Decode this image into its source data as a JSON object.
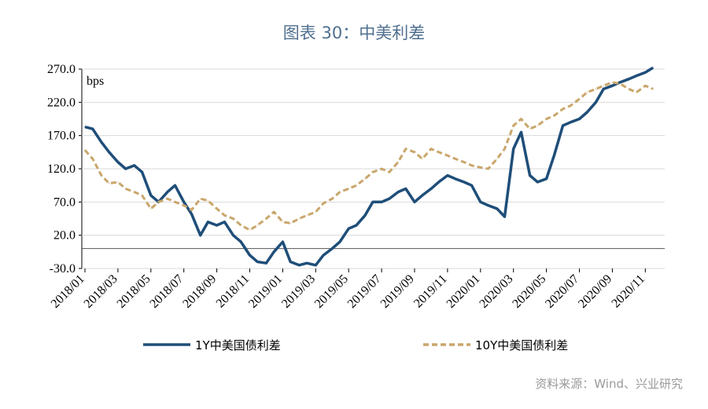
{
  "title": "图表 30：中美利差",
  "source": "资料来源：Wind、兴业研究",
  "chart_data": {
    "type": "line",
    "unit": "bps",
    "ylim": [
      -30,
      270
    ],
    "yticks": [
      "270.0",
      "220.0",
      "170.0",
      "120.0",
      "70.0",
      "20.0",
      "-30.0"
    ],
    "xticks": [
      "2018/01",
      "2018/03",
      "2018/05",
      "2018/07",
      "2018/09",
      "2018/11",
      "2019/01",
      "2019/03",
      "2019/05",
      "2019/07",
      "2019/09",
      "2019/11",
      "2020/01",
      "2020/03",
      "2020/05",
      "2020/07",
      "2020/09",
      "2020/11"
    ],
    "legend_position": "bottom",
    "series": [
      {
        "name": "1Y中美国债利差",
        "color": "#1f4e79",
        "style": "solid",
        "points": [
          [
            "2018/01",
            183
          ],
          [
            "2018/01/15",
            180
          ],
          [
            "2018/02",
            160
          ],
          [
            "2018/02/15",
            145
          ],
          [
            "2018/03",
            130
          ],
          [
            "2018/03/15",
            120
          ],
          [
            "2018/04",
            125
          ],
          [
            "2018/04/15",
            115
          ],
          [
            "2018/05",
            80
          ],
          [
            "2018/05/15",
            70
          ],
          [
            "2018/06",
            85
          ],
          [
            "2018/06/15",
            95
          ],
          [
            "2018/07",
            70
          ],
          [
            "2018/07/15",
            52
          ],
          [
            "2018/08",
            20
          ],
          [
            "2018/08/15",
            40
          ],
          [
            "2018/09",
            35
          ],
          [
            "2018/09/15",
            40
          ],
          [
            "2018/10",
            20
          ],
          [
            "2018/10/15",
            10
          ],
          [
            "2018/11",
            -10
          ],
          [
            "2018/11/15",
            -20
          ],
          [
            "2018/12",
            -22
          ],
          [
            "2018/12/15",
            -5
          ],
          [
            "2019/01",
            10
          ],
          [
            "2019/01/15",
            -20
          ],
          [
            "2019/02",
            -25
          ],
          [
            "2019/02/15",
            -22
          ],
          [
            "2019/03",
            -25
          ],
          [
            "2019/03/15",
            -10
          ],
          [
            "2019/04",
            0
          ],
          [
            "2019/04/15",
            10
          ],
          [
            "2019/05",
            30
          ],
          [
            "2019/05/15",
            35
          ],
          [
            "2019/06",
            50
          ],
          [
            "2019/06/15",
            70
          ],
          [
            "2019/07",
            70
          ],
          [
            "2019/07/15",
            75
          ],
          [
            "2019/08",
            85
          ],
          [
            "2019/08/15",
            90
          ],
          [
            "2019/09",
            70
          ],
          [
            "2019/09/15",
            80
          ],
          [
            "2019/10",
            90
          ],
          [
            "2019/10/15",
            100
          ],
          [
            "2019/11",
            110
          ],
          [
            "2019/11/15",
            105
          ],
          [
            "2019/12",
            100
          ],
          [
            "2019/12/15",
            95
          ],
          [
            "2020/01",
            70
          ],
          [
            "2020/01/15",
            65
          ],
          [
            "2020/02",
            60
          ],
          [
            "2020/02/15",
            48
          ],
          [
            "2020/03",
            150
          ],
          [
            "2020/03/15",
            175
          ],
          [
            "2020/04",
            110
          ],
          [
            "2020/04/15",
            100
          ],
          [
            "2020/05",
            105
          ],
          [
            "2020/05/15",
            140
          ],
          [
            "2020/06",
            185
          ],
          [
            "2020/06/15",
            190
          ],
          [
            "2020/07",
            195
          ],
          [
            "2020/07/15",
            205
          ],
          [
            "2020/08",
            220
          ],
          [
            "2020/08/15",
            240
          ],
          [
            "2020/09",
            245
          ],
          [
            "2020/09/15",
            250
          ],
          [
            "2020/10",
            255
          ],
          [
            "2020/10/15",
            260
          ],
          [
            "2020/11",
            265
          ],
          [
            "2020/11/15",
            272
          ]
        ]
      },
      {
        "name": "10Y中美国债利差",
        "color": "#c9a66b",
        "style": "dashed",
        "points": [
          [
            "2018/01",
            148
          ],
          [
            "2018/01/15",
            135
          ],
          [
            "2018/02",
            110
          ],
          [
            "2018/02/15",
            98
          ],
          [
            "2018/03",
            100
          ],
          [
            "2018/03/15",
            90
          ],
          [
            "2018/04",
            85
          ],
          [
            "2018/04/15",
            80
          ],
          [
            "2018/05",
            60
          ],
          [
            "2018/05/15",
            70
          ],
          [
            "2018/06",
            75
          ],
          [
            "2018/06/15",
            70
          ],
          [
            "2018/07",
            65
          ],
          [
            "2018/07/15",
            58
          ],
          [
            "2018/08",
            75
          ],
          [
            "2018/08/15",
            72
          ],
          [
            "2018/09",
            60
          ],
          [
            "2018/09/15",
            50
          ],
          [
            "2018/10",
            45
          ],
          [
            "2018/10/15",
            35
          ],
          [
            "2018/11",
            28
          ],
          [
            "2018/11/15",
            35
          ],
          [
            "2018/12",
            45
          ],
          [
            "2018/12/15",
            55
          ],
          [
            "2019/01",
            40
          ],
          [
            "2019/01/15",
            38
          ],
          [
            "2019/02",
            45
          ],
          [
            "2019/02/15",
            50
          ],
          [
            "2019/03",
            55
          ],
          [
            "2019/03/15",
            68
          ],
          [
            "2019/04",
            75
          ],
          [
            "2019/04/15",
            85
          ],
          [
            "2019/05",
            90
          ],
          [
            "2019/05/15",
            95
          ],
          [
            "2019/06",
            105
          ],
          [
            "2019/06/15",
            115
          ],
          [
            "2019/07",
            120
          ],
          [
            "2019/07/15",
            115
          ],
          [
            "2019/08",
            130
          ],
          [
            "2019/08/15",
            150
          ],
          [
            "2019/09",
            145
          ],
          [
            "2019/09/15",
            135
          ],
          [
            "2019/10",
            150
          ],
          [
            "2019/10/15",
            145
          ],
          [
            "2019/11",
            140
          ],
          [
            "2019/11/15",
            135
          ],
          [
            "2019/12",
            130
          ],
          [
            "2019/12/15",
            125
          ],
          [
            "2020/01",
            122
          ],
          [
            "2020/01/15",
            120
          ],
          [
            "2020/02",
            135
          ],
          [
            "2020/02/15",
            150
          ],
          [
            "2020/03",
            185
          ],
          [
            "2020/03/15",
            195
          ],
          [
            "2020/04",
            180
          ],
          [
            "2020/04/15",
            185
          ],
          [
            "2020/05",
            195
          ],
          [
            "2020/05/15",
            200
          ],
          [
            "2020/06",
            210
          ],
          [
            "2020/06/15",
            215
          ],
          [
            "2020/07",
            225
          ],
          [
            "2020/07/15",
            235
          ],
          [
            "2020/08",
            240
          ],
          [
            "2020/08/15",
            245
          ],
          [
            "2020/09",
            250
          ],
          [
            "2020/09/15",
            248
          ],
          [
            "2020/10",
            240
          ],
          [
            "2020/10/15",
            235
          ],
          [
            "2020/11",
            245
          ],
          [
            "2020/11/15",
            240
          ]
        ]
      }
    ]
  }
}
